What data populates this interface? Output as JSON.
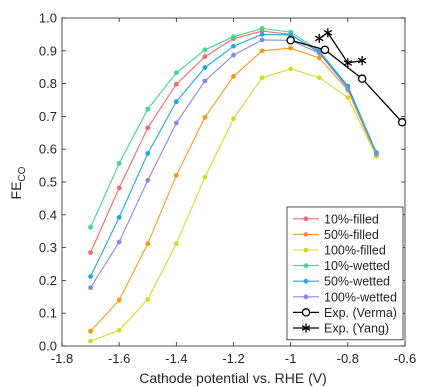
{
  "chart_data": {
    "type": "line",
    "xlabel": "Cathode potential vs. RHE (V)",
    "ylabel_main": "FE",
    "ylabel_sub": "CO",
    "xlim": [
      -1.8,
      -0.6
    ],
    "ylim": [
      0,
      1.0
    ],
    "xticks": [
      -1.8,
      -1.6,
      -1.4,
      -1.2,
      -1.0,
      -0.8,
      -0.6
    ],
    "xtick_labels": [
      "-1.8",
      "-1.6",
      "-1.4",
      "-1.2",
      "-1",
      "-0.8",
      "-0.6"
    ],
    "yticks": [
      0,
      0.1,
      0.2,
      0.3,
      0.4,
      0.5,
      0.6,
      0.7,
      0.8,
      0.9,
      1.0
    ],
    "ytick_labels": [
      "0.0",
      "0.1",
      "0.2",
      "0.3",
      "0.4",
      "0.5",
      "0.6",
      "0.7",
      "0.8",
      "0.9",
      "1.0"
    ],
    "grid": false,
    "legend_position": "bottom-right",
    "x": [
      -1.7,
      -1.6,
      -1.5,
      -1.4,
      -1.3,
      -1.2,
      -1.1,
      -1.0,
      -0.9,
      -0.8,
      -0.7
    ],
    "series": [
      {
        "name": "10%-filled",
        "color": "#f26b6b",
        "marker": "dot",
        "values": [
          0.285,
          0.482,
          0.665,
          0.798,
          0.882,
          0.937,
          0.96,
          0.95,
          0.895,
          0.788,
          0.585
        ]
      },
      {
        "name": "50%-filled",
        "color": "#f39c1c",
        "marker": "dot",
        "values": [
          0.045,
          0.14,
          0.312,
          0.52,
          0.697,
          0.822,
          0.9,
          0.908,
          0.878,
          0.78,
          0.58
        ]
      },
      {
        "name": "100%-filled",
        "color": "#d9d92b",
        "marker": "dot",
        "values": [
          0.015,
          0.048,
          0.142,
          0.312,
          0.515,
          0.693,
          0.818,
          0.845,
          0.818,
          0.757,
          0.578
        ]
      },
      {
        "name": "10%-wetted",
        "color": "#3fd98a",
        "marker": "dot",
        "values": [
          0.362,
          0.557,
          0.722,
          0.833,
          0.903,
          0.943,
          0.968,
          0.957,
          0.9,
          0.793,
          0.59
        ]
      },
      {
        "name": "50%-wetted",
        "color": "#1ea7e6",
        "marker": "dot",
        "values": [
          0.212,
          0.392,
          0.587,
          0.745,
          0.849,
          0.914,
          0.95,
          0.948,
          0.897,
          0.792,
          0.588
        ]
      },
      {
        "name": "100%-wetted",
        "color": "#7f8be6",
        "marker": "dot",
        "values": [
          0.178,
          0.317,
          0.505,
          0.68,
          0.808,
          0.887,
          0.933,
          0.932,
          0.893,
          0.785,
          0.585
        ]
      },
      {
        "name": "Exp. (Verma)",
        "color": "#000000",
        "marker": "circle",
        "points": [
          [
            -1.0,
            0.932
          ],
          [
            -0.88,
            0.903
          ],
          [
            -0.75,
            0.815
          ],
          [
            -0.61,
            0.682
          ]
        ]
      },
      {
        "name": "Exp. (Yang)",
        "color": "#000000",
        "marker": "star",
        "points": [
          [
            -0.9,
            0.938
          ],
          [
            -0.87,
            0.955
          ],
          [
            -0.8,
            0.863
          ],
          [
            -0.75,
            0.87
          ]
        ]
      }
    ]
  }
}
